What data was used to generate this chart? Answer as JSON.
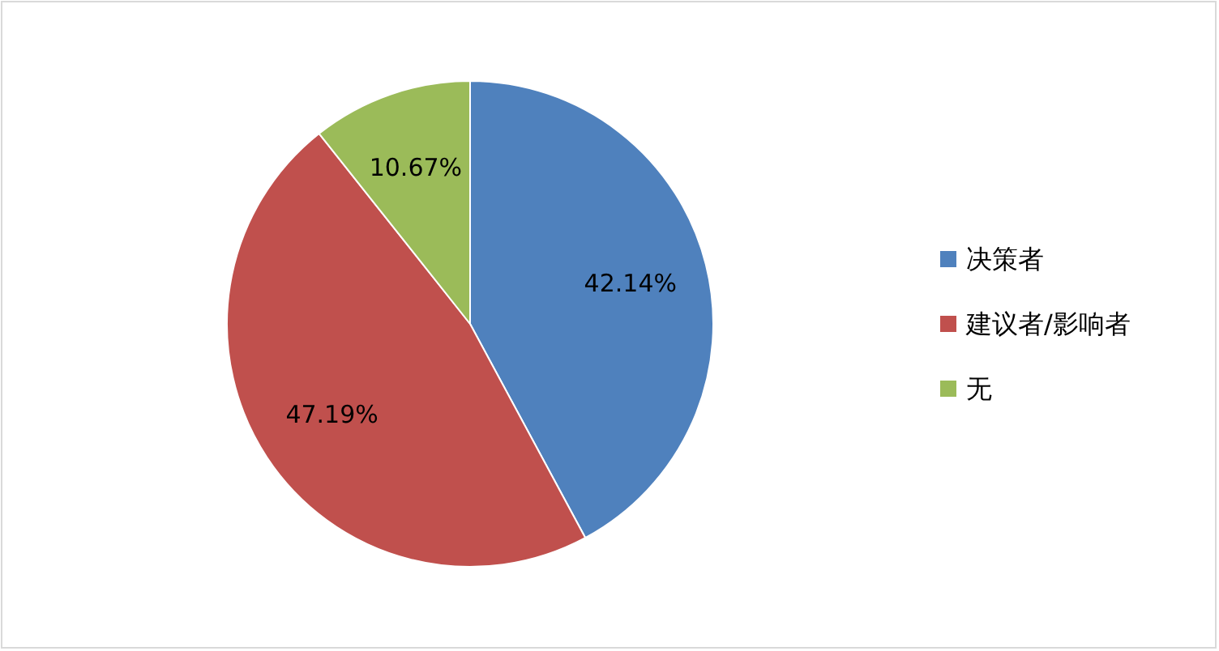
{
  "chart_data": {
    "type": "pie",
    "categories": [
      "决策者",
      "建议者/影响者",
      "无"
    ],
    "values": [
      42.14,
      47.19,
      10.67
    ],
    "colors": [
      "#4f81bd",
      "#c0504d",
      "#9bbb59"
    ],
    "value_labels": [
      "42.14%",
      "47.19%",
      "10.67%"
    ],
    "legend": "right"
  }
}
